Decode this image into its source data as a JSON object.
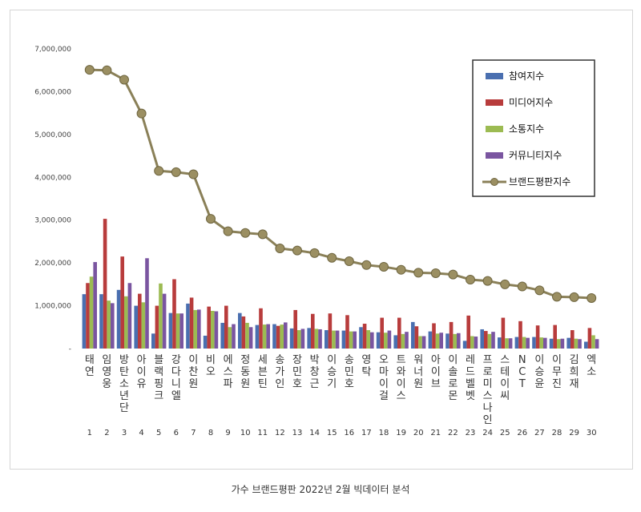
{
  "caption": "가수 브랜드평판 2022년 2월 빅데이터 분석",
  "chart_data": {
    "type": "bar+line",
    "title": "",
    "ylim": [
      0,
      7000000
    ],
    "y_ticks": [
      "-",
      "1,000,000",
      "2,000,000",
      "3,000,000",
      "4,000,000",
      "5,000,000",
      "6,000,000",
      "7,000,000"
    ],
    "grid": false,
    "legend_position": "top-right",
    "categories": [
      "태연",
      "임영웅",
      "방탄소년단",
      "아이유",
      "블랙핑크",
      "강다니엘",
      "이찬원",
      "비오",
      "에스파",
      "정동원",
      "세븐틴",
      "송가인",
      "장민호",
      "박창근",
      "이승기",
      "송민호",
      "영탁",
      "오마이걸",
      "트와이스",
      "워너원",
      "아이브",
      "이솔로몬",
      "레드벨벳",
      "프로미스나인",
      "스테이씨",
      "NCT",
      "이승윤",
      "이무진",
      "김희재",
      "엑소"
    ],
    "ranks": [
      "1",
      "2",
      "3",
      "4",
      "5",
      "6",
      "7",
      "8",
      "9",
      "10",
      "11",
      "12",
      "13",
      "14",
      "15",
      "16",
      "17",
      "18",
      "19",
      "20",
      "21",
      "22",
      "23",
      "24",
      "25",
      "26",
      "27",
      "28",
      "29",
      "30"
    ],
    "series": [
      {
        "name": "참여지수",
        "kind": "bar",
        "color": "#4a6fb0",
        "values": [
          1270000,
          1270000,
          1370000,
          1000000,
          350000,
          830000,
          1050000,
          300000,
          600000,
          830000,
          550000,
          570000,
          470000,
          480000,
          430000,
          420000,
          500000,
          380000,
          310000,
          620000,
          400000,
          350000,
          180000,
          450000,
          260000,
          270000,
          270000,
          230000,
          250000,
          160000
        ]
      },
      {
        "name": "미디어지수",
        "kind": "bar",
        "color": "#b83c3c",
        "values": [
          1530000,
          3030000,
          2150000,
          1280000,
          1000000,
          1620000,
          1190000,
          980000,
          1000000,
          750000,
          940000,
          530000,
          900000,
          810000,
          820000,
          780000,
          580000,
          720000,
          720000,
          520000,
          590000,
          620000,
          770000,
          410000,
          720000,
          640000,
          540000,
          550000,
          430000,
          480000
        ]
      },
      {
        "name": "소통지수",
        "kind": "bar",
        "color": "#9cbb52",
        "values": [
          1680000,
          1120000,
          1220000,
          1080000,
          1520000,
          820000,
          900000,
          880000,
          500000,
          600000,
          560000,
          560000,
          430000,
          460000,
          420000,
          400000,
          430000,
          370000,
          340000,
          290000,
          350000,
          340000,
          290000,
          340000,
          240000,
          270000,
          260000,
          220000,
          230000,
          310000
        ]
      },
      {
        "name": "커뮤니티지수",
        "kind": "bar",
        "color": "#7a55a0",
        "values": [
          2020000,
          1060000,
          1530000,
          2110000,
          1280000,
          820000,
          910000,
          870000,
          570000,
          500000,
          570000,
          610000,
          460000,
          450000,
          420000,
          400000,
          380000,
          420000,
          390000,
          290000,
          370000,
          360000,
          280000,
          390000,
          240000,
          250000,
          250000,
          230000,
          220000,
          220000
        ]
      },
      {
        "name": "브랜드평판지수",
        "kind": "line",
        "color": "#8a8058",
        "values": [
          6510000,
          6500000,
          6280000,
          5490000,
          4150000,
          4120000,
          4070000,
          3030000,
          2740000,
          2700000,
          2670000,
          2340000,
          2290000,
          2230000,
          2120000,
          2040000,
          1950000,
          1910000,
          1840000,
          1770000,
          1760000,
          1730000,
          1610000,
          1580000,
          1500000,
          1450000,
          1360000,
          1210000,
          1200000,
          1180000
        ]
      }
    ]
  }
}
